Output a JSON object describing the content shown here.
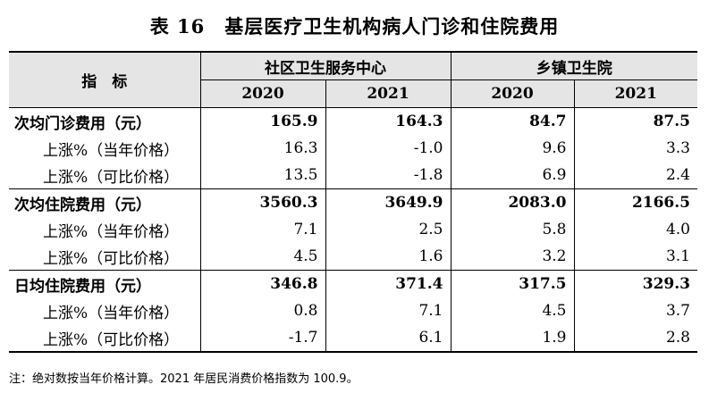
{
  "title": "表 16　基层医疗卫生机构病人门诊和住院费用",
  "header": {
    "indicator": "指　标",
    "group1": "社区卫生服务中心",
    "group2": "乡镇卫生院",
    "years": [
      "2020",
      "2021",
      "2020",
      "2021"
    ]
  },
  "rows": [
    {
      "label": "次均门诊费用（元）",
      "values": [
        "165.9",
        "164.3",
        "84.7",
        "87.5"
      ],
      "bold": true
    },
    {
      "label": "上涨%（当年价格）",
      "values": [
        "16.3",
        "-1.0",
        "9.6",
        "3.3"
      ],
      "bold": false
    },
    {
      "label": "上涨%（可比价格）",
      "values": [
        "13.5",
        "-1.8",
        "6.9",
        "2.4"
      ],
      "bold": false
    },
    {
      "label": "次均住院费用（元）",
      "values": [
        "3560.3",
        "3649.9",
        "2083.0",
        "2166.5"
      ],
      "bold": true
    },
    {
      "label": "上涨%（当年价格）",
      "values": [
        "7.1",
        "2.5",
        "5.8",
        "4.0"
      ],
      "bold": false
    },
    {
      "label": "上涨%（可比价格）",
      "values": [
        "4.5",
        "1.6",
        "3.2",
        "3.1"
      ],
      "bold": false
    },
    {
      "label": "日均住院费用（元）",
      "values": [
        "346.8",
        "371.4",
        "317.5",
        "329.3"
      ],
      "bold": true
    },
    {
      "label": "上涨%（当年价格）",
      "values": [
        "0.8",
        "7.1",
        "4.5",
        "3.7"
      ],
      "bold": false
    },
    {
      "label": "上涨%（可比价格）",
      "values": [
        "-1.7",
        "6.1",
        "1.9",
        "2.8"
      ],
      "bold": false
    }
  ],
  "note": "注：绝对数按当年价格计算。2021 年居民消费价格指数为 100.9。"
}
